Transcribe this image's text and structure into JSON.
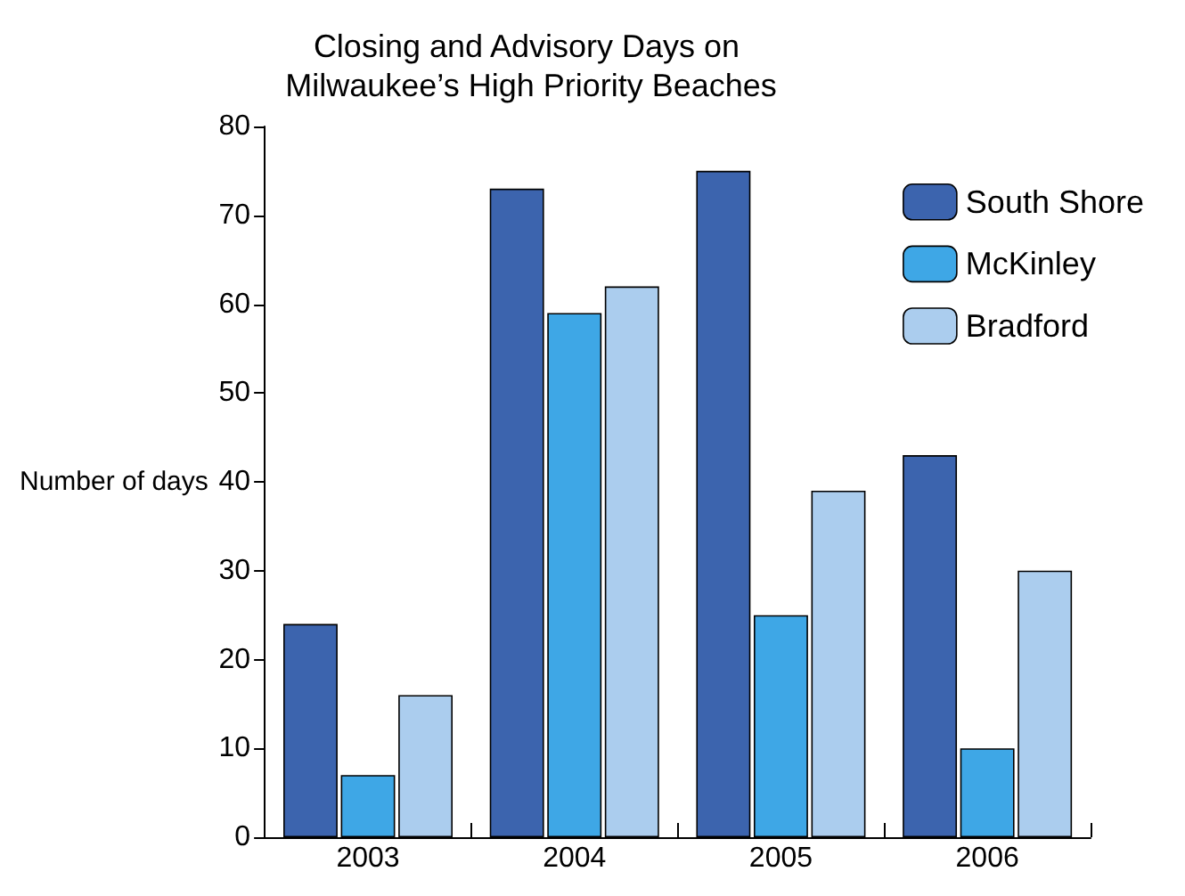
{
  "chart_data": {
    "type": "bar",
    "title": "Closing and Advisory Days on Milwaukee’s High Priority Beaches",
    "ylabel": "Number of days",
    "categories": [
      "2003",
      "2004",
      "2005",
      "2006"
    ],
    "series": [
      {
        "name": "South Shore",
        "color": "#3c64ae",
        "values": [
          24,
          73,
          75,
          43
        ]
      },
      {
        "name": "McKinley",
        "color": "#3ea7e6",
        "values": [
          7,
          59,
          25,
          10
        ]
      },
      {
        "name": "Bradford",
        "color": "#abcdee",
        "values": [
          16,
          62,
          39,
          30
        ]
      }
    ],
    "ylim": [
      0,
      80
    ],
    "yticks": [
      0,
      10,
      20,
      30,
      40,
      50,
      60,
      70,
      80
    ],
    "grid": false,
    "legend": "top right"
  }
}
